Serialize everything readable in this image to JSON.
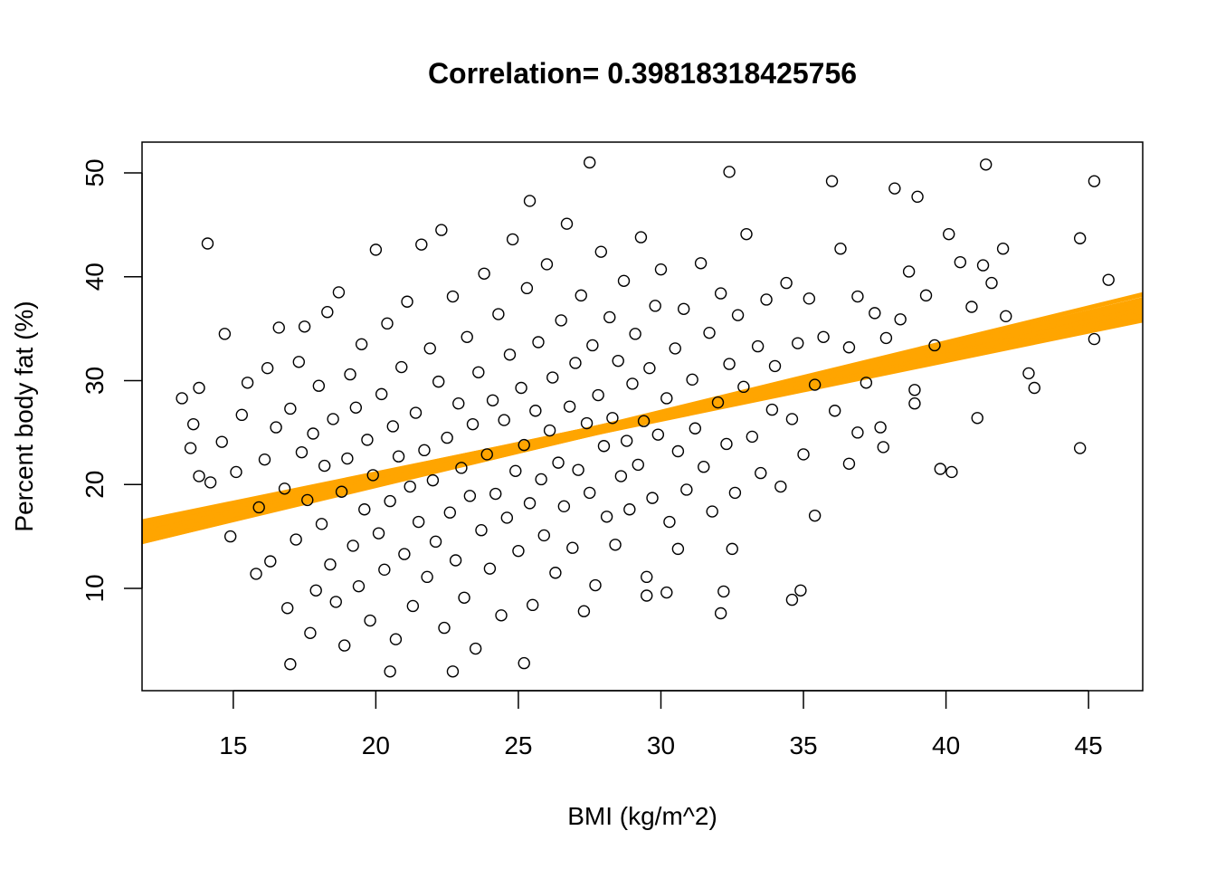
{
  "chart_data": {
    "type": "scatter",
    "title": "Correlation= 0.39818318425756",
    "xlabel": "BMI (kg/m^2)",
    "ylabel": "Percent body fat (%)",
    "xlim": [
      11.8,
      46.9
    ],
    "ylim": [
      0.15,
      52.96
    ],
    "xticks": [
      15,
      20,
      25,
      30,
      35,
      40,
      45
    ],
    "yticks": [
      10,
      20,
      30,
      40,
      50
    ],
    "grid": false,
    "legend": "none",
    "point_color": "#000000",
    "fit_line_color": "#FFA500",
    "fit_lines": {
      "intercept_center": 8.3,
      "slope_center": 0.61,
      "intercept_range": [
        6.6,
        10.2
      ],
      "slope_range": [
        0.56,
        0.67
      ]
    },
    "points": [
      [
        14.1,
        43.2
      ],
      [
        27.5,
        51
      ],
      [
        32.4,
        50.1
      ],
      [
        41.4,
        50.8
      ],
      [
        45.2,
        49.2
      ],
      [
        36,
        49.2
      ],
      [
        38.2,
        48.5
      ],
      [
        39,
        47.7
      ],
      [
        25.4,
        47.3
      ],
      [
        17,
        2.7
      ],
      [
        20.5,
        2
      ],
      [
        22.7,
        2
      ],
      [
        25.2,
        2.8
      ],
      [
        13.2,
        28.3
      ],
      [
        43.1,
        29.3
      ],
      [
        42.9,
        30.7
      ],
      [
        44.7,
        23.5
      ],
      [
        39.8,
        21.5
      ],
      [
        40.2,
        21.2
      ],
      [
        41.1,
        26.4
      ],
      [
        44.7,
        43.7
      ],
      [
        45.7,
        39.7
      ],
      [
        45.2,
        34
      ],
      [
        40.1,
        44.1
      ],
      [
        42,
        42.7
      ],
      [
        35.4,
        17
      ],
      [
        34.6,
        8.9
      ],
      [
        34.9,
        9.8
      ],
      [
        32.1,
        7.6
      ],
      [
        32.2,
        9.7
      ],
      [
        29.5,
        9.3
      ],
      [
        30.2,
        9.6
      ],
      [
        38.9,
        29.1
      ],
      [
        38.9,
        27.8
      ],
      [
        37.8,
        23.6
      ],
      [
        37.7,
        25.5
      ],
      [
        36.6,
        22
      ],
      [
        36.9,
        25
      ],
      [
        30.6,
        13.8
      ],
      [
        32.5,
        13.8
      ],
      [
        13.5,
        23.5
      ],
      [
        13.6,
        25.8
      ],
      [
        13.8,
        29.3
      ],
      [
        13.8,
        20.8
      ],
      [
        14.2,
        20.2
      ],
      [
        14.6,
        24.1
      ],
      [
        14.7,
        34.5
      ],
      [
        14.9,
        15
      ],
      [
        15.1,
        21.2
      ],
      [
        15.3,
        26.7
      ],
      [
        15.5,
        29.8
      ],
      [
        15.8,
        11.4
      ],
      [
        15.9,
        17.8
      ],
      [
        16.1,
        22.4
      ],
      [
        16.2,
        31.2
      ],
      [
        16.3,
        12.6
      ],
      [
        16.5,
        25.5
      ],
      [
        16.6,
        35.1
      ],
      [
        16.8,
        19.6
      ],
      [
        16.9,
        8.1
      ],
      [
        17,
        27.3
      ],
      [
        17.2,
        14.7
      ],
      [
        17.3,
        31.8
      ],
      [
        17.4,
        23.1
      ],
      [
        17.5,
        35.2
      ],
      [
        17.6,
        18.5
      ],
      [
        17.7,
        5.7
      ],
      [
        17.8,
        24.9
      ],
      [
        17.9,
        9.8
      ],
      [
        18,
        29.5
      ],
      [
        18.1,
        16.2
      ],
      [
        18.2,
        21.8
      ],
      [
        18.3,
        36.6
      ],
      [
        18.4,
        12.3
      ],
      [
        18.5,
        26.3
      ],
      [
        18.6,
        8.7
      ],
      [
        18.7,
        38.5
      ],
      [
        18.8,
        19.3
      ],
      [
        18.9,
        4.5
      ],
      [
        19,
        22.5
      ],
      [
        19.1,
        30.6
      ],
      [
        19.2,
        14.1
      ],
      [
        19.3,
        27.4
      ],
      [
        19.4,
        10.2
      ],
      [
        19.5,
        33.5
      ],
      [
        19.6,
        17.6
      ],
      [
        19.7,
        24.3
      ],
      [
        19.8,
        6.9
      ],
      [
        19.9,
        20.9
      ],
      [
        20,
        42.6
      ],
      [
        20.1,
        15.3
      ],
      [
        20.2,
        28.7
      ],
      [
        20.3,
        11.8
      ],
      [
        20.4,
        35.5
      ],
      [
        20.5,
        18.4
      ],
      [
        20.6,
        25.6
      ],
      [
        20.7,
        5.1
      ],
      [
        20.8,
        22.7
      ],
      [
        20.9,
        31.3
      ],
      [
        21,
        13.3
      ],
      [
        21.1,
        37.6
      ],
      [
        21.2,
        19.8
      ],
      [
        21.3,
        8.3
      ],
      [
        21.4,
        26.9
      ],
      [
        21.5,
        16.4
      ],
      [
        21.6,
        43.1
      ],
      [
        21.7,
        23.3
      ],
      [
        21.8,
        11.1
      ],
      [
        21.9,
        33.1
      ],
      [
        22,
        20.4
      ],
      [
        22.1,
        14.5
      ],
      [
        22.2,
        29.9
      ],
      [
        22.3,
        44.5
      ],
      [
        22.4,
        6.2
      ],
      [
        22.5,
        24.5
      ],
      [
        22.6,
        17.3
      ],
      [
        22.7,
        38.1
      ],
      [
        22.8,
        12.7
      ],
      [
        22.9,
        27.8
      ],
      [
        23,
        21.6
      ],
      [
        23.1,
        9.1
      ],
      [
        23.2,
        34.2
      ],
      [
        23.3,
        18.9
      ],
      [
        23.4,
        25.8
      ],
      [
        23.5,
        4.2
      ],
      [
        23.6,
        30.8
      ],
      [
        23.7,
        15.6
      ],
      [
        23.8,
        40.3
      ],
      [
        23.9,
        22.9
      ],
      [
        24,
        11.9
      ],
      [
        24.1,
        28.1
      ],
      [
        24.2,
        19.1
      ],
      [
        24.3,
        36.4
      ],
      [
        24.4,
        7.4
      ],
      [
        24.5,
        26.2
      ],
      [
        24.6,
        16.8
      ],
      [
        24.7,
        32.5
      ],
      [
        24.8,
        43.6
      ],
      [
        24.9,
        21.3
      ],
      [
        25,
        13.6
      ],
      [
        25.1,
        29.3
      ],
      [
        25.2,
        23.8
      ],
      [
        25.3,
        38.9
      ],
      [
        25.4,
        18.2
      ],
      [
        25.5,
        8.4
      ],
      [
        25.6,
        27.1
      ],
      [
        25.7,
        33.7
      ],
      [
        25.8,
        20.5
      ],
      [
        25.9,
        15.1
      ],
      [
        26,
        41.2
      ],
      [
        26.1,
        25.2
      ],
      [
        26.2,
        30.3
      ],
      [
        26.3,
        11.5
      ],
      [
        26.4,
        22.1
      ],
      [
        26.5,
        35.8
      ],
      [
        26.6,
        17.9
      ],
      [
        26.7,
        45.1
      ],
      [
        26.8,
        27.5
      ],
      [
        26.9,
        13.9
      ],
      [
        27,
        31.7
      ],
      [
        27.1,
        21.4
      ],
      [
        27.2,
        38.2
      ],
      [
        27.3,
        7.8
      ],
      [
        27.4,
        25.9
      ],
      [
        27.5,
        19.2
      ],
      [
        27.6,
        33.4
      ],
      [
        27.7,
        10.3
      ],
      [
        27.8,
        28.6
      ],
      [
        27.9,
        42.4
      ],
      [
        28,
        23.7
      ],
      [
        28.1,
        16.9
      ],
      [
        28.2,
        36.1
      ],
      [
        28.3,
        26.4
      ],
      [
        28.4,
        14.2
      ],
      [
        28.5,
        31.9
      ],
      [
        28.6,
        20.8
      ],
      [
        28.7,
        39.6
      ],
      [
        28.8,
        24.2
      ],
      [
        28.9,
        17.6
      ],
      [
        29,
        29.7
      ],
      [
        29.1,
        34.5
      ],
      [
        29.2,
        21.9
      ],
      [
        29.3,
        43.8
      ],
      [
        29.4,
        26.1
      ],
      [
        29.5,
        11.1
      ],
      [
        29.6,
        31.2
      ],
      [
        29.7,
        18.7
      ],
      [
        29.8,
        37.2
      ],
      [
        29.9,
        24.8
      ],
      [
        30,
        40.7
      ],
      [
        30.2,
        28.3
      ],
      [
        30.3,
        16.4
      ],
      [
        30.5,
        33.1
      ],
      [
        30.6,
        23.2
      ],
      [
        30.8,
        36.9
      ],
      [
        30.9,
        19.5
      ],
      [
        31.1,
        30.1
      ],
      [
        31.2,
        25.4
      ],
      [
        31.4,
        41.3
      ],
      [
        31.5,
        21.7
      ],
      [
        31.7,
        34.6
      ],
      [
        31.8,
        17.4
      ],
      [
        32,
        27.9
      ],
      [
        32.1,
        38.4
      ],
      [
        32.3,
        23.9
      ],
      [
        32.4,
        31.6
      ],
      [
        32.6,
        19.2
      ],
      [
        32.7,
        36.3
      ],
      [
        32.9,
        29.4
      ],
      [
        33,
        44.1
      ],
      [
        33.2,
        24.6
      ],
      [
        33.4,
        33.3
      ],
      [
        33.5,
        21.1
      ],
      [
        33.7,
        37.8
      ],
      [
        33.9,
        27.2
      ],
      [
        34,
        31.4
      ],
      [
        34.2,
        19.8
      ],
      [
        34.4,
        39.4
      ],
      [
        34.6,
        26.3
      ],
      [
        34.8,
        33.6
      ],
      [
        35,
        22.9
      ],
      [
        35.2,
        37.9
      ],
      [
        35.4,
        29.6
      ],
      [
        35.7,
        34.2
      ],
      [
        36.1,
        27.1
      ],
      [
        36.3,
        42.7
      ],
      [
        36.6,
        33.2
      ],
      [
        36.9,
        38.1
      ],
      [
        37.2,
        29.8
      ],
      [
        37.5,
        36.5
      ],
      [
        37.9,
        34.1
      ],
      [
        38.4,
        35.9
      ],
      [
        38.7,
        40.5
      ],
      [
        39.3,
        38.2
      ],
      [
        39.6,
        33.4
      ],
      [
        40.5,
        41.4
      ],
      [
        40.9,
        37.1
      ],
      [
        41.3,
        41.1
      ],
      [
        41.6,
        39.4
      ],
      [
        42.1,
        36.2
      ]
    ]
  }
}
